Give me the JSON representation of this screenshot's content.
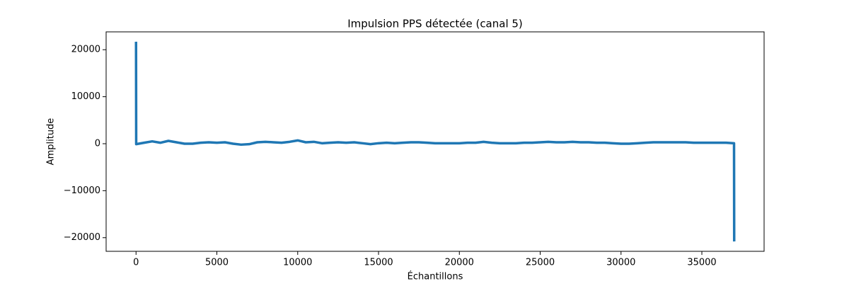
{
  "chart_data": {
    "type": "line",
    "title": "Impulsion PPS détectée (canal 5)",
    "xlabel": "Échantillons",
    "ylabel": "Amplitude",
    "x": [
      0,
      10,
      500,
      1000,
      1500,
      2000,
      2500,
      3000,
      3500,
      4000,
      4500,
      5000,
      5500,
      6000,
      6500,
      7000,
      7500,
      8000,
      8500,
      9000,
      9500,
      10000,
      10500,
      11000,
      11500,
      12000,
      12500,
      13000,
      13500,
      14000,
      14500,
      15000,
      15500,
      16000,
      16500,
      17000,
      17500,
      18000,
      18500,
      19000,
      19500,
      20000,
      20500,
      21000,
      21500,
      22000,
      22500,
      23000,
      23500,
      24000,
      24500,
      25000,
      25500,
      26000,
      26500,
      27000,
      27500,
      28000,
      28500,
      29000,
      29500,
      30000,
      30500,
      31000,
      31500,
      32000,
      32500,
      33000,
      33500,
      34000,
      34500,
      35000,
      35500,
      36000,
      36500,
      36990,
      37000
    ],
    "series": [
      {
        "name": "canal 5",
        "color": "#1f77b4",
        "values": [
          21700,
          -100,
          200,
          500,
          200,
          600,
          300,
          0,
          0,
          200,
          300,
          200,
          300,
          0,
          -200,
          -100,
          300,
          400,
          300,
          200,
          400,
          700,
          300,
          400,
          100,
          200,
          300,
          200,
          300,
          100,
          -100,
          100,
          200,
          100,
          200,
          300,
          300,
          200,
          100,
          100,
          100,
          100,
          200,
          200,
          400,
          200,
          100,
          100,
          100,
          200,
          200,
          300,
          400,
          300,
          300,
          400,
          300,
          300,
          200,
          200,
          100,
          0,
          0,
          100,
          200,
          300,
          300,
          300,
          300,
          300,
          200,
          200,
          200,
          200,
          200,
          100,
          -20800
        ]
      }
    ],
    "xlim": [
      -1850,
      38850
    ],
    "ylim": [
      -22900,
      23800
    ],
    "xticks": [
      0,
      5000,
      10000,
      15000,
      20000,
      25000,
      30000,
      35000
    ],
    "yticks": [
      {
        "value": -20000,
        "label": "−20000"
      },
      {
        "value": -10000,
        "label": "−10000"
      },
      0,
      10000,
      20000
    ],
    "grid": false
  }
}
